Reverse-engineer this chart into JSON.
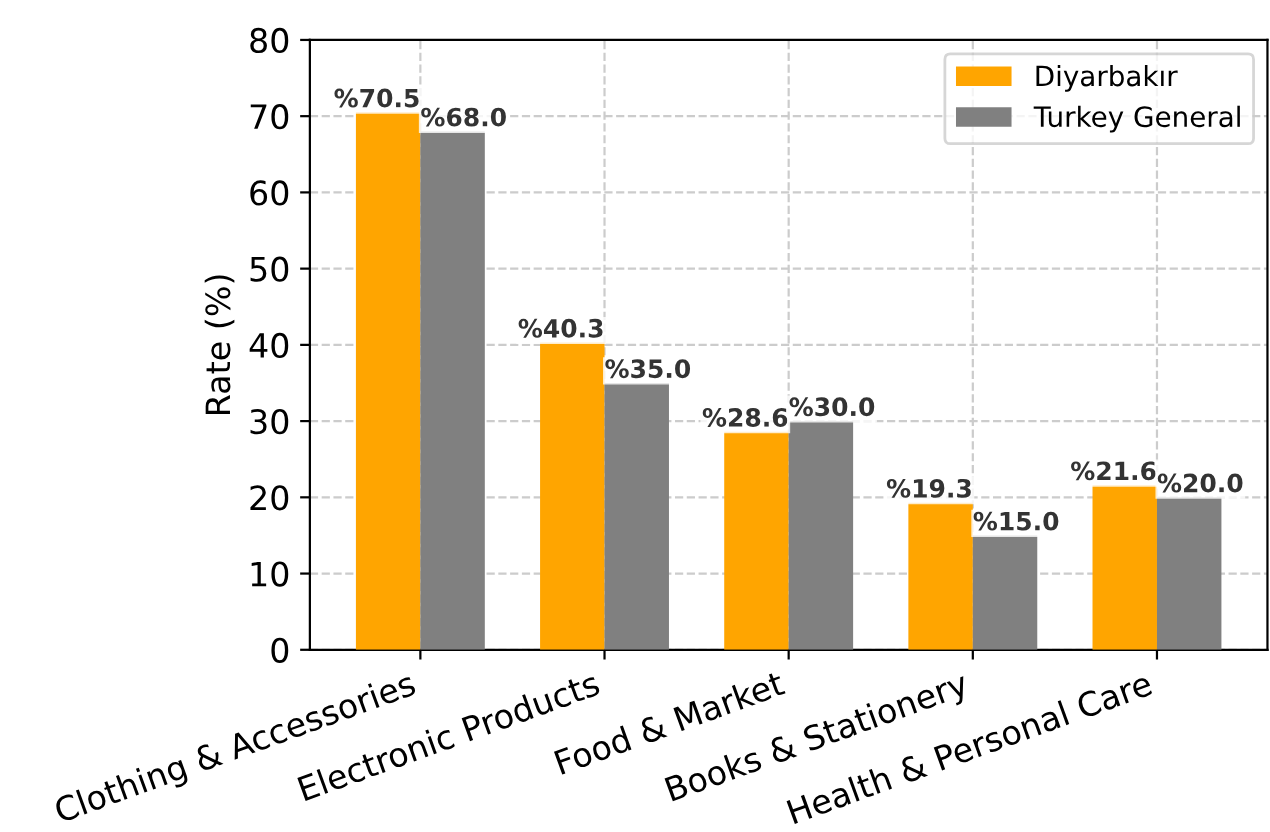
{
  "chart_data": {
    "type": "bar",
    "ylabel": "Rate (%)",
    "categories": [
      "Clothing & Accessories",
      "Electronic Products",
      "Food & Market",
      "Books & Stationery",
      "Health & Personal Care"
    ],
    "series": [
      {
        "name": "Diyarbakır",
        "color": "#ffa500",
        "values": [
          70.5,
          40.3,
          28.6,
          19.3,
          21.6
        ],
        "value_labels": [
          "%70.5",
          "%40.3",
          "%28.6",
          "%19.3",
          "%21.6"
        ]
      },
      {
        "name": "Turkey General",
        "color": "#808080",
        "values": [
          68.0,
          35.0,
          30.0,
          15.0,
          20.0
        ],
        "value_labels": [
          "%68.0",
          "%35.0",
          "%30.0",
          "%15.0",
          "%20.0"
        ]
      }
    ],
    "ylim": [
      0,
      80
    ],
    "yticks": [
      0,
      10,
      20,
      30,
      40,
      50,
      60,
      70,
      80
    ],
    "grid": true,
    "legend": "top right"
  }
}
